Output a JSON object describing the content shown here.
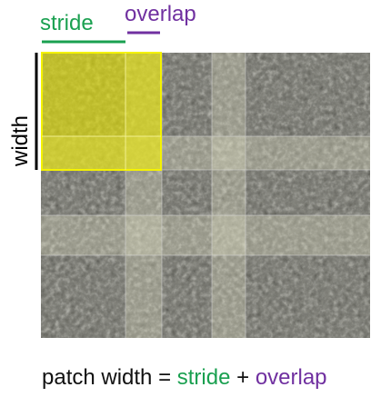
{
  "labels": {
    "stride": "stride",
    "overlap": "overlap",
    "width": "width"
  },
  "formula": {
    "lhs": "patch width",
    "equals": " = ",
    "stride": "stride",
    "plus": " + ",
    "overlap": "overlap"
  },
  "colors": {
    "stride": "#1aa050",
    "overlap": "#7030a0",
    "width": "#000000",
    "patch_highlight": "#e8e600",
    "patch_border": "#f0f000",
    "overlap_band": "#e8e8c8"
  }
}
